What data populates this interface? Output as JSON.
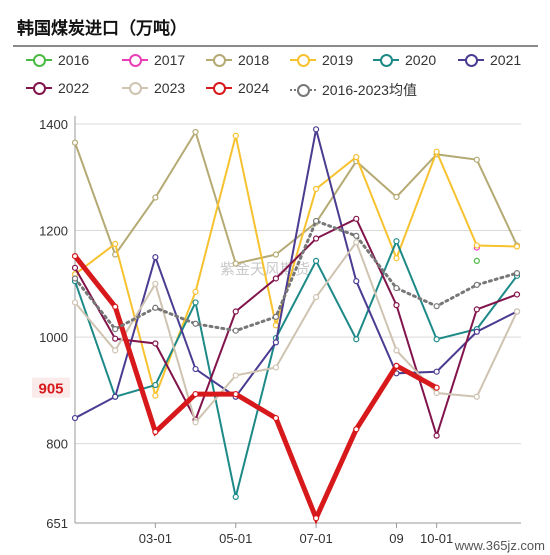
{
  "title": "韩国煤炭进口（万吨）",
  "watermark": "紫金天风期货",
  "corner_text": "www.365jz.com",
  "chart_data": {
    "type": "line",
    "categories": [
      "01",
      "02",
      "03",
      "04",
      "05",
      "06",
      "07",
      "08",
      "09",
      "10",
      "11",
      "12"
    ],
    "x_tick_labels": [
      "03-01",
      "05-01",
      "07-01",
      "09",
      "10-01"
    ],
    "y_ticks": [
      651,
      800,
      1000,
      1200,
      1400
    ],
    "ylim": [
      651,
      1400
    ],
    "last_value_label": "905",
    "series": [
      {
        "name": "2016",
        "color": "#4cbb45",
        "values": [
          null,
          null,
          null,
          null,
          null,
          null,
          null,
          null,
          null,
          null,
          1143,
          null
        ]
      },
      {
        "name": "2017",
        "color": "#e83fb9",
        "values": [
          null,
          null,
          null,
          null,
          null,
          null,
          null,
          null,
          null,
          null,
          1168,
          null
        ]
      },
      {
        "name": "2018",
        "color": "#b5aa74",
        "values": [
          1365,
          1155,
          1262,
          1385,
          1138,
          1155,
          1215,
          1330,
          1263,
          1343,
          1333,
          1172
        ]
      },
      {
        "name": "2019",
        "color": "#f7c22f",
        "values": [
          1118,
          1175,
          890,
          1085,
          1378,
          1022,
          1278,
          1338,
          1148,
          1348,
          1172,
          1170
        ]
      },
      {
        "name": "2020",
        "color": "#1d8a88",
        "values": [
          1105,
          888,
          910,
          1065,
          700,
          998,
          1143,
          996,
          1180,
          996,
          1015,
          1115
        ]
      },
      {
        "name": "2021",
        "color": "#4b3b91",
        "values": [
          848,
          888,
          1150,
          940,
          888,
          990,
          1390,
          1105,
          932,
          935,
          1010,
          1048
        ]
      },
      {
        "name": "2022",
        "color": "#82144c",
        "values": [
          1130,
          997,
          988,
          845,
          1048,
          1110,
          1185,
          1222,
          1060,
          815,
          1052,
          1080
        ]
      },
      {
        "name": "2023",
        "color": "#cfc3b1",
        "values": [
          1065,
          975,
          1100,
          840,
          928,
          943,
          1075,
          1178,
          975,
          895,
          888,
          1048
        ]
      },
      {
        "name": "2024",
        "color": "#d7191c",
        "values": [
          1152,
          1057,
          822,
          893,
          893,
          848,
          660,
          827,
          946,
          905,
          null,
          null
        ]
      },
      {
        "name": "2016-2023均值",
        "color": "#777777",
        "dotted": true,
        "values": [
          1110,
          1015,
          1055,
          1025,
          1012,
          1038,
          1218,
          1190,
          1092,
          1058,
          1098,
          1120
        ]
      }
    ]
  }
}
